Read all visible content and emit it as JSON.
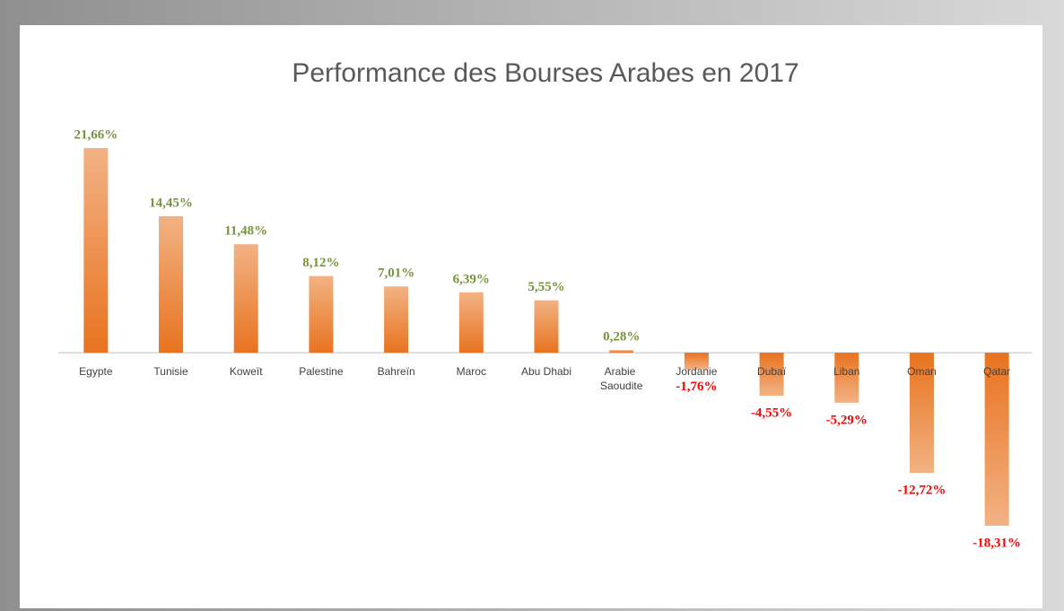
{
  "chart_data": {
    "type": "bar",
    "title": "Performance des Bourses Arabes en 2017",
    "categories": [
      "Egypte",
      "Tunisie",
      "Koweït",
      "Palestine",
      "Bahreïn",
      "Maroc",
      "Abu Dhabi",
      "Arabie Saoudite",
      "Jordanie",
      "Dubaï",
      "Liban",
      "Oman",
      "Qatar"
    ],
    "values": [
      21.66,
      14.45,
      11.48,
      8.12,
      7.01,
      6.39,
      5.55,
      0.28,
      -1.76,
      -4.55,
      -5.29,
      -12.72,
      -18.31
    ],
    "value_labels": [
      "21,66%",
      "14,45%",
      "11,48%",
      "8,12%",
      "7,01%",
      "6,39%",
      "5,55%",
      "0,28%",
      "-1,76%",
      "-4,55%",
      "-5,29%",
      "-12,72%",
      "-18,31%"
    ],
    "color": "#e8731f",
    "positive_label_color": "#77933c",
    "negative_label_color": "#ff0000"
  }
}
